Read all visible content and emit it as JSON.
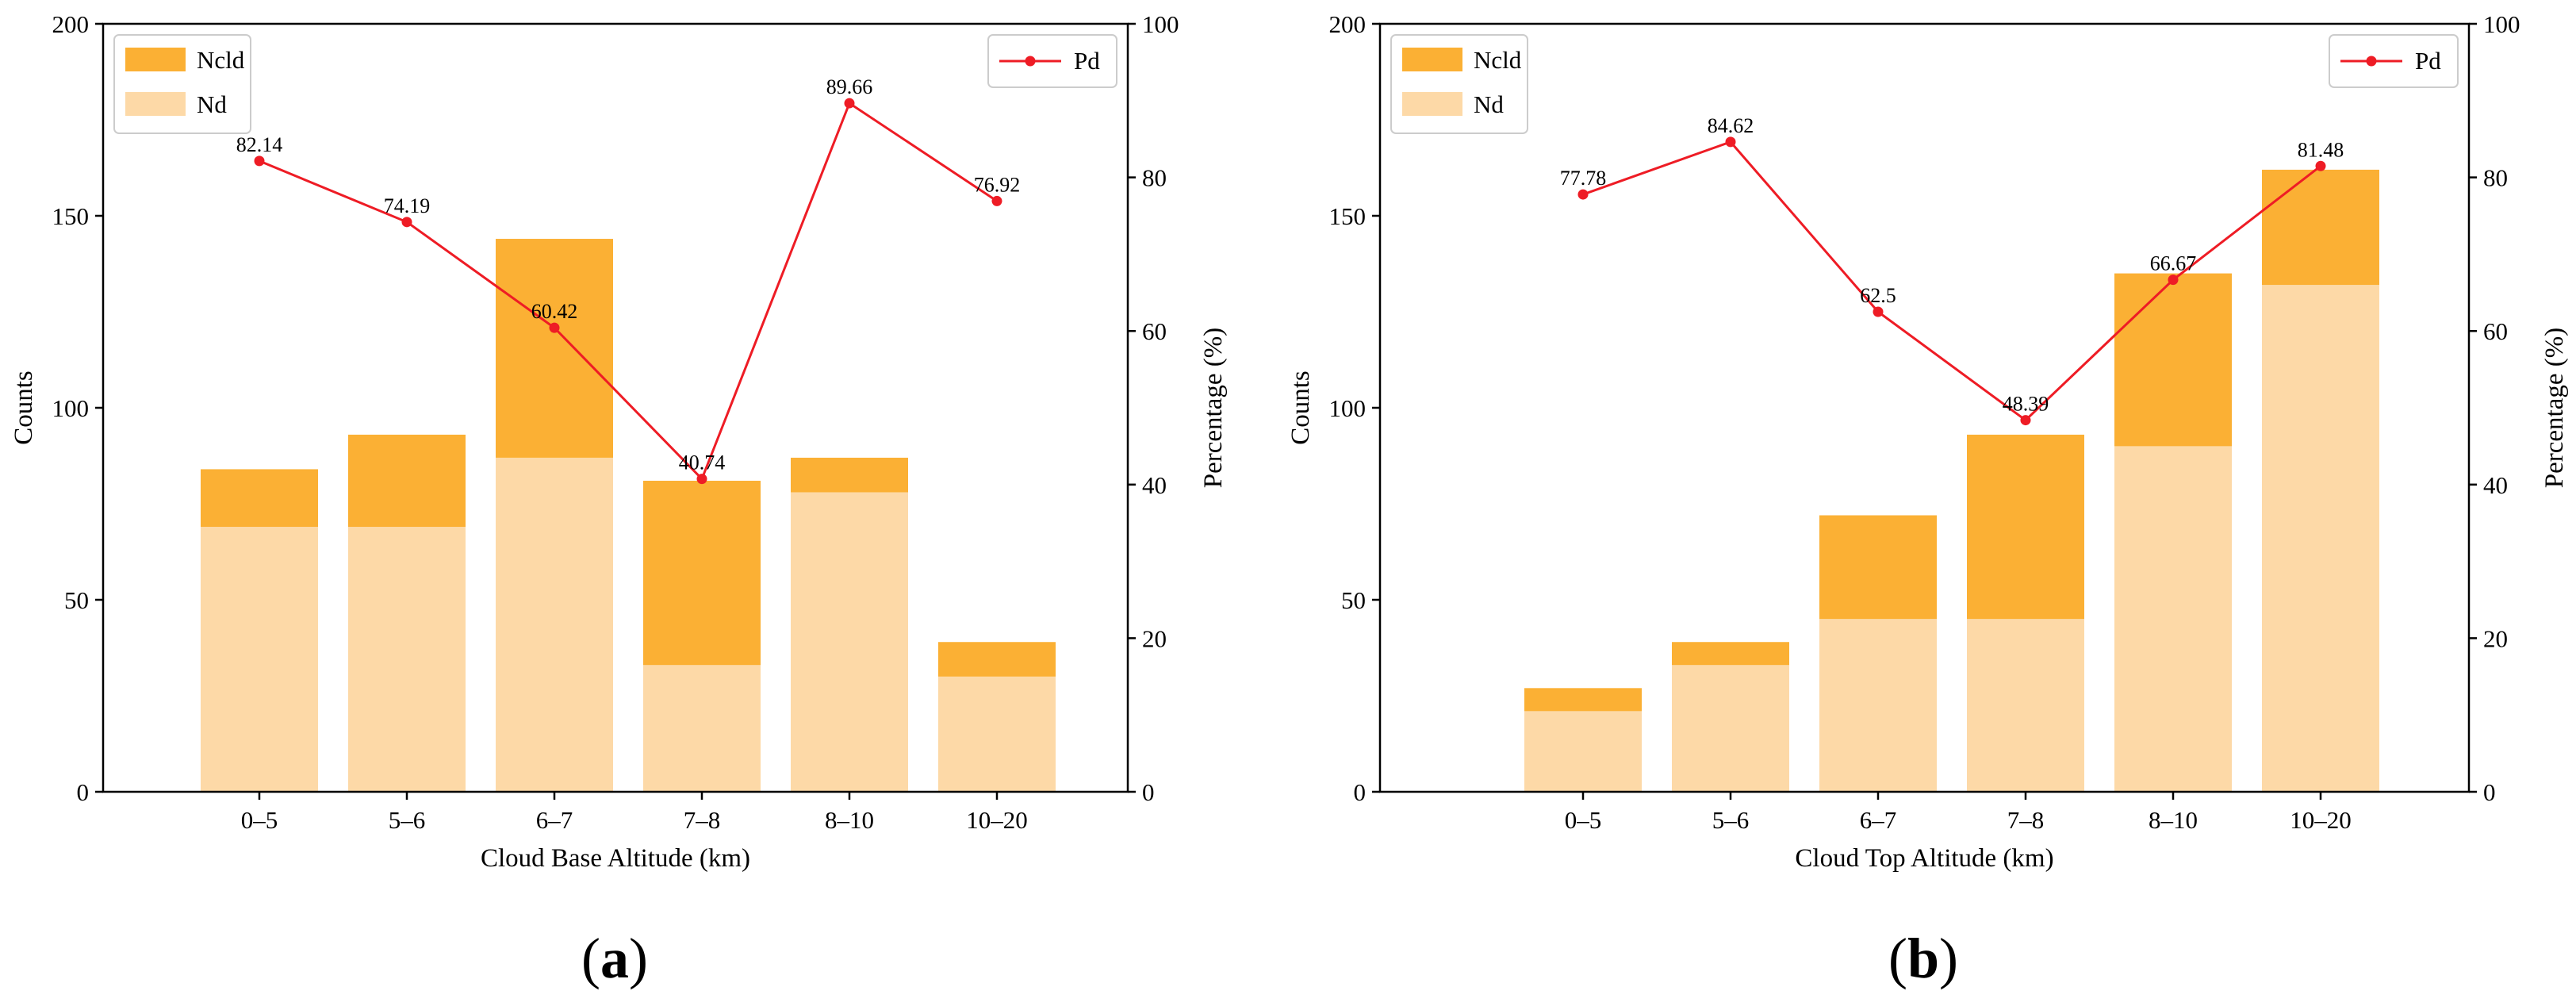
{
  "colors": {
    "ncld": "#fbb034",
    "nd": "#fdd9a7",
    "pd": "#ee1c25",
    "axis": "#000000"
  },
  "chart_data": [
    {
      "type": "bar",
      "stacked": true,
      "panel_label": "a",
      "categories": [
        "0–5",
        "5–6",
        "6–7",
        "7–8",
        "8–10",
        "10–20"
      ],
      "series": [
        {
          "name": "Nd",
          "values": [
            69,
            69,
            87,
            33,
            78,
            30
          ]
        },
        {
          "name": "Ncld",
          "values": [
            15,
            24,
            57,
            48,
            9,
            9
          ]
        }
      ],
      "line_series": {
        "name": "Pd",
        "values": [
          82.14,
          74.19,
          60.42,
          40.74,
          89.66,
          76.92
        ],
        "labels": [
          "82.14",
          "74.19",
          "60.42",
          "40.74",
          "89.66",
          "76.92"
        ]
      },
      "xlabel": "Cloud Base Altitude (km)",
      "ylabel": "Counts",
      "y2label": "Percentage (%)",
      "ylim": [
        0,
        200
      ],
      "y2lim": [
        0,
        100
      ],
      "yticks": [
        "0",
        "50",
        "100",
        "150",
        "200"
      ],
      "y2ticks": [
        "0",
        "20",
        "40",
        "60",
        "80",
        "100"
      ],
      "legend_bars": [
        "Ncld",
        "Nd"
      ],
      "legend_line": "Pd"
    },
    {
      "type": "bar",
      "stacked": true,
      "panel_label": "b",
      "categories": [
        "0–5",
        "5–6",
        "6–7",
        "7–8",
        "8–10",
        "10–20"
      ],
      "series": [
        {
          "name": "Nd",
          "values": [
            21,
            33,
            45,
            45,
            90,
            132
          ]
        },
        {
          "name": "Ncld",
          "values": [
            6,
            6,
            27,
            48,
            45,
            30
          ]
        }
      ],
      "line_series": {
        "name": "Pd",
        "values": [
          77.78,
          84.62,
          62.5,
          48.39,
          66.67,
          81.48
        ],
        "labels": [
          "77.78",
          "84.62",
          "62.5",
          "48.39",
          "66.67",
          "81.48"
        ]
      },
      "xlabel": "Cloud Top Altitude (km)",
      "ylabel": "Counts",
      "y2label": "Percentage (%)",
      "ylim": [
        0,
        200
      ],
      "y2lim": [
        0,
        100
      ],
      "yticks": [
        "0",
        "50",
        "100",
        "150",
        "200"
      ],
      "y2ticks": [
        "0",
        "20",
        "40",
        "60",
        "80",
        "100"
      ],
      "legend_bars": [
        "Ncld",
        "Nd"
      ],
      "legend_line": "Pd"
    }
  ]
}
